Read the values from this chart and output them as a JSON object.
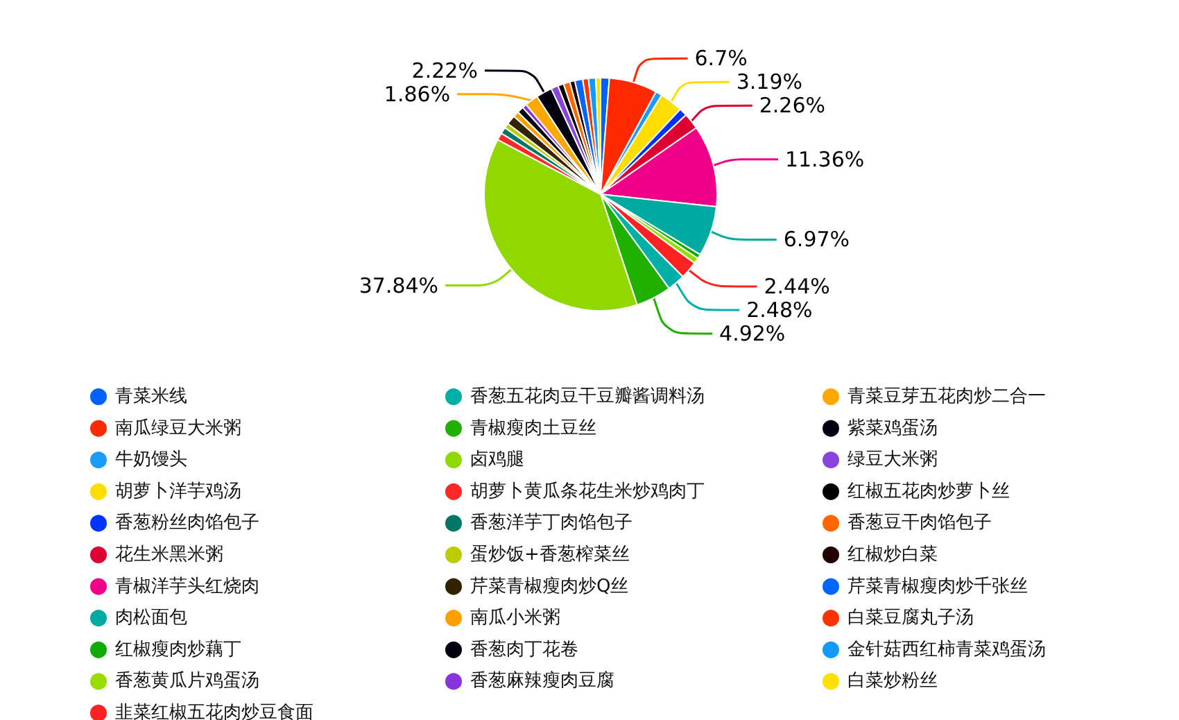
{
  "chart_data": {
    "type": "pie",
    "categories": [
      "青菜米线",
      "南瓜绿豆大米粥",
      "牛奶馒头",
      "胡萝卜洋芋鸡汤",
      "香葱粉丝肉馅包子",
      "花生米黑米粥",
      "青椒洋芋头红烧肉",
      "肉松面包",
      "红椒瘦肉炒藕丁",
      "香葱黄瓜片鸡蛋汤",
      "韭菜红椒五花肉炒豆食面",
      "香葱五花肉豆干豆瓣酱调料汤",
      "青椒瘦肉土豆丝",
      "卤鸡腿",
      "胡萝卜黄瓜条花生米炒鸡肉丁",
      "香葱洋芋丁肉馅包子",
      "蛋炒饭+香葱榨菜丝",
      "芹菜青椒瘦肉炒Q丝",
      "南瓜小米粥",
      "香葱肉丁花卷",
      "香葱麻辣瘦肉豆腐",
      "青菜豆芽五花肉炒二合一",
      "紫菜鸡蛋汤",
      "绿豆大米粥",
      "红椒五花肉炒萝卜丝",
      "香葱豆干肉馅包子",
      "红椒炒白菜",
      "芹菜青椒瘦肉炒千张丝",
      "白菜豆腐丸子汤",
      "金针菇西红柿青菜鸡蛋汤",
      "白菜炒粉丝"
    ],
    "values": [
      1.2,
      6.7,
      0.9,
      3.19,
      1.1,
      2.26,
      11.36,
      6.97,
      0.6,
      0.8,
      2.44,
      2.48,
      4.92,
      37.84,
      1.0,
      0.9,
      0.7,
      1.3,
      0.8,
      0.9,
      0.6,
      1.86,
      2.22,
      1.0,
      0.8,
      0.9,
      0.7,
      1.1,
      0.8,
      1.0,
      0.66
    ],
    "value_labels": [
      null,
      "6.7%",
      null,
      "3.19%",
      null,
      "2.26%",
      "11.36%",
      "6.97%",
      null,
      null,
      "2.44%",
      "2.48%",
      "4.92%",
      "37.84%",
      null,
      null,
      null,
      null,
      null,
      null,
      null,
      "1.86%",
      "2.22%",
      null,
      null,
      null,
      null,
      null,
      null,
      null,
      null
    ],
    "colors": [
      "#0061ff",
      "#ff2a00",
      "#1a9cff",
      "#ffdd00",
      "#0033ff",
      "#dd0033",
      "#ee0088",
      "#00aaa0",
      "#11aa00",
      "#99dd00",
      "#ff2222",
      "#00b0a8",
      "#22b000",
      "#90d800",
      "#ff2828",
      "#007766",
      "#bbcc00",
      "#332200",
      "#ffa000",
      "#000011",
      "#8833dd",
      "#ffa800",
      "#000010",
      "#8844dd",
      "#000000",
      "#ff6600",
      "#220000",
      "#0066ff",
      "#ff3300",
      "#1199ff",
      "#ffe000"
    ],
    "legend": "bottom"
  }
}
